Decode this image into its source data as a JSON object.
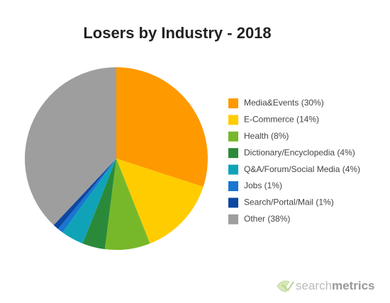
{
  "chart_data": {
    "type": "pie",
    "title": "Losers by Industry - 2018",
    "categories": [
      "Media&Events (30%)",
      "E-Commerce (14%)",
      "Health (8%)",
      "Dictionary/Encyclopedia (4%)",
      "Q&A/Forum/Social Media (4%)",
      "Jobs (1%)",
      "Search/Portal/Mail (1%)",
      "Other (38%)"
    ],
    "values": [
      30,
      14,
      8,
      4,
      4,
      1,
      1,
      38
    ],
    "colors": [
      "#ff9900",
      "#ffcc00",
      "#77b82a",
      "#2a8a3a",
      "#10a3b8",
      "#1976d2",
      "#0d47a1",
      "#9e9e9e"
    ],
    "legend": "right",
    "watermark": [
      "search",
      "metrics"
    ]
  }
}
